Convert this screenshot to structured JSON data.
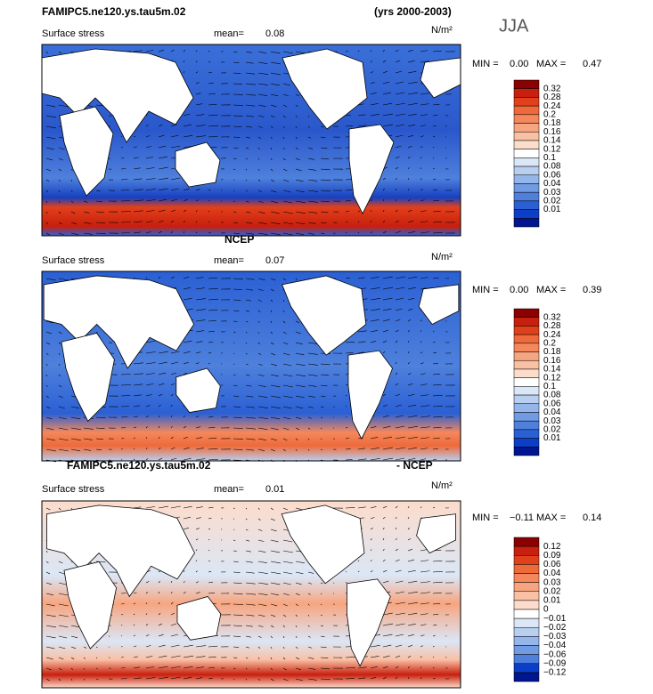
{
  "header": {
    "title_left": "FAMIPC5.ne120.ys.tau5m.02",
    "title_right": "(yrs 2000-2003)",
    "season": "JJA"
  },
  "panels": [
    {
      "field": "Surface stress",
      "mean_label": "mean=",
      "mean": "0.08",
      "units": "N/m²",
      "min_label": "MIN =",
      "min": "0.00",
      "max_label": "MAX =",
      "max": "0.47",
      "colorbar": [
        "0.32",
        "0.28",
        "0.24",
        "0.2",
        "0.18",
        "0.16",
        "0.14",
        "0.12",
        "0.1",
        "0.08",
        "0.06",
        "0.04",
        "0.03",
        "0.02",
        "0.01"
      ]
    },
    {
      "title": "NCEP",
      "field": "Surface stress",
      "mean_label": "mean=",
      "mean": "0.07",
      "units": "N/m²",
      "min_label": "MIN =",
      "min": "0.00",
      "max_label": "MAX =",
      "max": "0.39",
      "colorbar": [
        "0.32",
        "0.28",
        "0.24",
        "0.2",
        "0.18",
        "0.16",
        "0.14",
        "0.12",
        "0.1",
        "0.08",
        "0.06",
        "0.04",
        "0.03",
        "0.02",
        "0.01"
      ]
    },
    {
      "title": "FAMIPC5.ne120.ys.tau5m.02",
      "title_right": "- NCEP",
      "field": "Surface stress",
      "mean_label": "mean=",
      "mean": "0.01",
      "units": "N/m²",
      "min_label": "MIN =",
      "min": "−0.11",
      "max_label": "MAX =",
      "max": "0.14",
      "colorbar": [
        "0.12",
        "0.09",
        "0.06",
        "0.04",
        "0.03",
        "0.02",
        "0.01",
        "0",
        "−0.01",
        "−0.02",
        "−0.03",
        "−0.04",
        "−0.06",
        "−0.09",
        "−0.12"
      ]
    }
  ]
}
